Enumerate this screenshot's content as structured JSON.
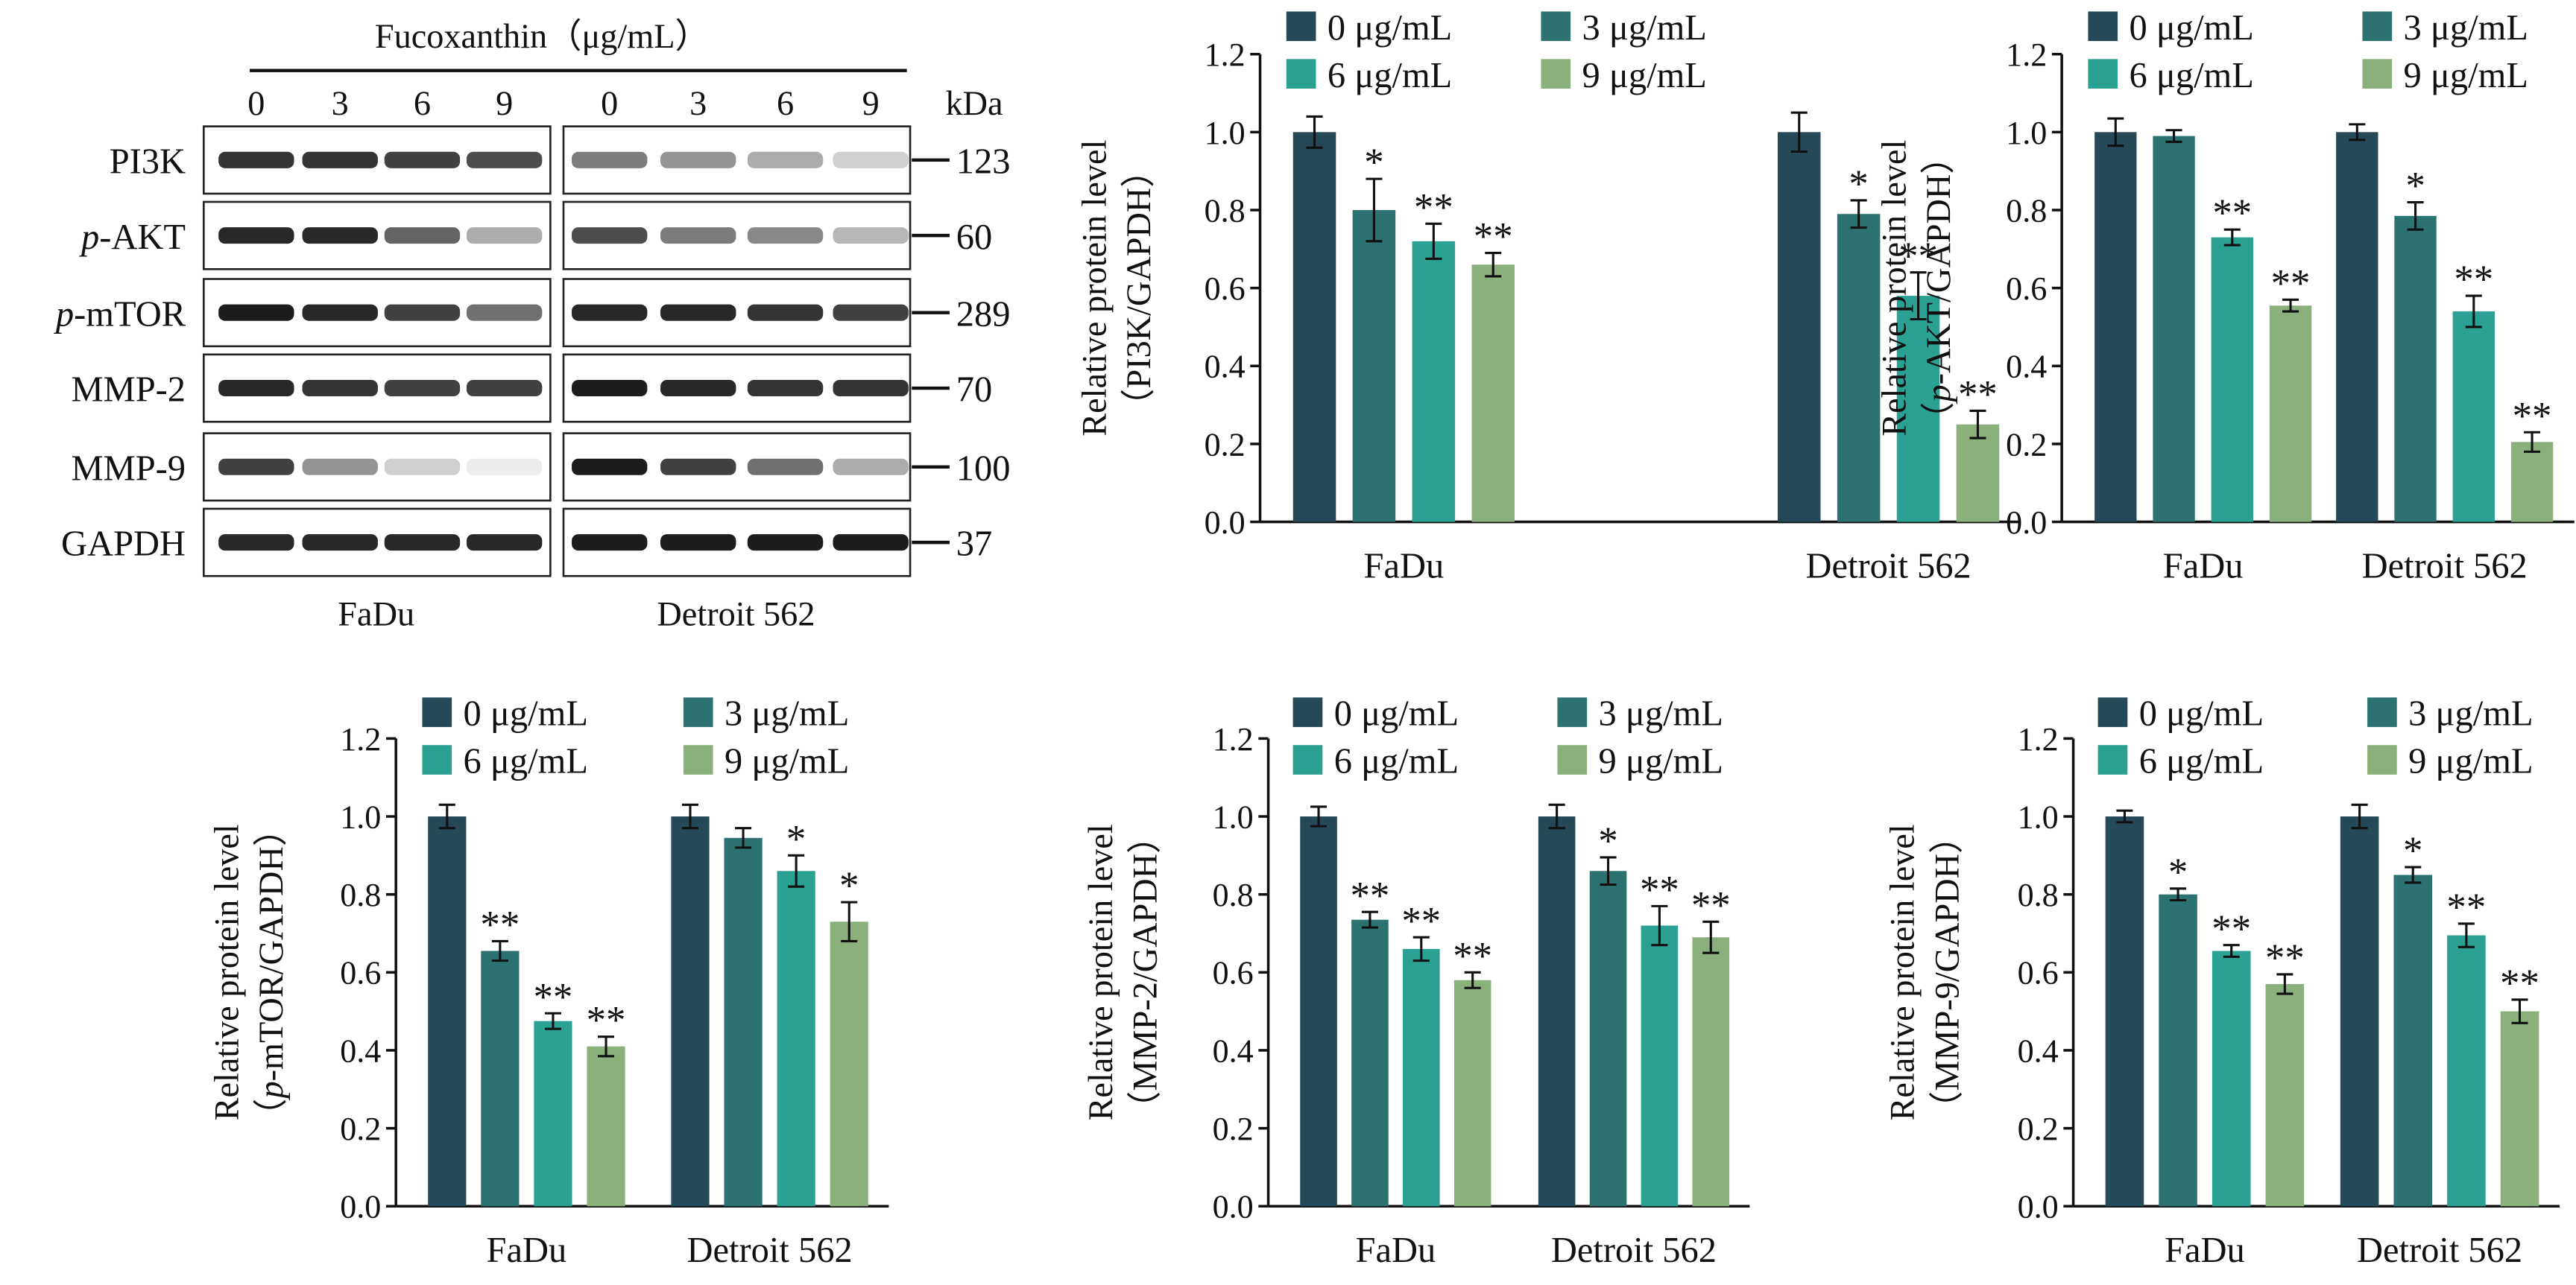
{
  "blot": {
    "treatment_label": "Fucoxanthin（μg/mL）",
    "doses": [
      "0",
      "3",
      "6",
      "9"
    ],
    "unit_label": "kDa",
    "cell_lines": [
      "FaDu",
      "Detroit 562"
    ],
    "rows": [
      {
        "prefix": "",
        "name": "PI3K",
        "kda": "123",
        "intensity": [
          [
            0.85,
            0.85,
            0.8,
            0.75
          ],
          [
            0.55,
            0.45,
            0.35,
            0.2
          ]
        ]
      },
      {
        "prefix": "p",
        "name": "-AKT",
        "kda": "60",
        "intensity": [
          [
            0.9,
            0.9,
            0.65,
            0.35
          ],
          [
            0.75,
            0.55,
            0.5,
            0.3
          ]
        ]
      },
      {
        "prefix": "p",
        "name": "-mTOR",
        "kda": "289",
        "intensity": [
          [
            0.95,
            0.9,
            0.8,
            0.6
          ],
          [
            0.9,
            0.9,
            0.85,
            0.8
          ]
        ]
      },
      {
        "prefix": "",
        "name": "MMP-2",
        "kda": "70",
        "intensity": [
          [
            0.9,
            0.85,
            0.8,
            0.8
          ],
          [
            0.95,
            0.9,
            0.85,
            0.85
          ]
        ]
      },
      {
        "prefix": "",
        "name": "MMP-9",
        "kda": "100",
        "intensity": [
          [
            0.8,
            0.45,
            0.2,
            0.08
          ],
          [
            0.95,
            0.8,
            0.6,
            0.35
          ]
        ]
      },
      {
        "prefix": "",
        "name": "GAPDH",
        "kda": "37",
        "intensity": [
          [
            0.9,
            0.9,
            0.9,
            0.9
          ],
          [
            0.95,
            0.95,
            0.95,
            0.95
          ]
        ]
      }
    ]
  },
  "chart_data": [
    {
      "type": "bar",
      "ylabel_main": "Relative protein level",
      "ylabel_sub": [
        "",
        "PI3K/GAPDH"
      ],
      "categories": [
        "FaDu",
        "Detroit 562"
      ],
      "ylim": [
        0,
        1.2
      ],
      "yticks": [
        "0.0",
        "0.2",
        "0.4",
        "0.6",
        "0.8",
        "1.0",
        "1.2"
      ],
      "legend": [
        "0 μg/mL",
        "3 μg/mL",
        "6 μg/mL",
        "9 μg/mL"
      ],
      "colors": [
        "#26495a",
        "#2b7270",
        "#2aa192",
        "#8ab07c"
      ],
      "values": [
        [
          1.0,
          0.8,
          0.72,
          0.66
        ],
        [
          1.0,
          0.79,
          0.58,
          0.25
        ]
      ],
      "errors": [
        [
          0.04,
          0.08,
          0.045,
          0.03
        ],
        [
          0.05,
          0.035,
          0.06,
          0.035
        ]
      ],
      "sig": [
        [
          "",
          "*",
          "**",
          "**"
        ],
        [
          "",
          "*",
          "**",
          "**"
        ]
      ]
    },
    {
      "type": "bar",
      "ylabel_main": "Relative protein level",
      "ylabel_sub": [
        "p",
        "-AKT/GAPDH"
      ],
      "categories": [
        "FaDu",
        "Detroit 562"
      ],
      "ylim": [
        0,
        1.2
      ],
      "yticks": [
        "0.0",
        "0.2",
        "0.4",
        "0.6",
        "0.8",
        "1.0",
        "1.2"
      ],
      "legend": [
        "0 μg/mL",
        "3 μg/mL",
        "6 μg/mL",
        "9 μg/mL"
      ],
      "colors": [
        "#26495a",
        "#2b7270",
        "#2aa192",
        "#8ab07c"
      ],
      "values": [
        [
          1.0,
          0.99,
          0.73,
          0.555
        ],
        [
          1.0,
          0.785,
          0.54,
          0.205
        ]
      ],
      "errors": [
        [
          0.035,
          0.015,
          0.02,
          0.015
        ],
        [
          0.02,
          0.035,
          0.04,
          0.025
        ]
      ],
      "sig": [
        [
          "",
          "",
          "**",
          "**"
        ],
        [
          "",
          "*",
          "**",
          "**"
        ]
      ]
    },
    {
      "type": "bar",
      "ylabel_main": "Relative protein level",
      "ylabel_sub": [
        "p",
        "-mTOR/GAPDH"
      ],
      "categories": [
        "FaDu",
        "Detroit 562"
      ],
      "ylim": [
        0,
        1.2
      ],
      "yticks": [
        "0.0",
        "0.2",
        "0.4",
        "0.6",
        "0.8",
        "1.0",
        "1.2"
      ],
      "legend": [
        "0 μg/mL",
        "3 μg/mL",
        "6 μg/mL",
        "9 μg/mL"
      ],
      "colors": [
        "#26495a",
        "#2b7270",
        "#2aa192",
        "#8ab07c"
      ],
      "values": [
        [
          1.0,
          0.655,
          0.475,
          0.41
        ],
        [
          1.0,
          0.945,
          0.86,
          0.73
        ]
      ],
      "errors": [
        [
          0.03,
          0.025,
          0.02,
          0.025
        ],
        [
          0.03,
          0.025,
          0.04,
          0.05
        ]
      ],
      "sig": [
        [
          "",
          "**",
          "**",
          "**"
        ],
        [
          "",
          "",
          "*",
          "*"
        ]
      ]
    },
    {
      "type": "bar",
      "ylabel_main": "Relative protein level",
      "ylabel_sub": [
        "",
        "MMP-2/GAPDH"
      ],
      "categories": [
        "FaDu",
        "Detroit 562"
      ],
      "ylim": [
        0,
        1.2
      ],
      "yticks": [
        "0.0",
        "0.2",
        "0.4",
        "0.6",
        "0.8",
        "1.0",
        "1.2"
      ],
      "legend": [
        "0 μg/mL",
        "3 μg/mL",
        "6 μg/mL",
        "9 μg/mL"
      ],
      "colors": [
        "#26495a",
        "#2b7270",
        "#2aa192",
        "#8ab07c"
      ],
      "values": [
        [
          1.0,
          0.735,
          0.66,
          0.58
        ],
        [
          1.0,
          0.86,
          0.72,
          0.69
        ]
      ],
      "errors": [
        [
          0.025,
          0.02,
          0.03,
          0.02
        ],
        [
          0.03,
          0.035,
          0.05,
          0.04
        ]
      ],
      "sig": [
        [
          "",
          "**",
          "**",
          "**"
        ],
        [
          "",
          "*",
          "**",
          "**"
        ]
      ]
    },
    {
      "type": "bar",
      "ylabel_main": "Relative protein level",
      "ylabel_sub": [
        "",
        "MMP-9/GAPDH"
      ],
      "categories": [
        "FaDu",
        "Detroit 562"
      ],
      "ylim": [
        0,
        1.2
      ],
      "yticks": [
        "0.0",
        "0.2",
        "0.4",
        "0.6",
        "0.8",
        "1.0",
        "1.2"
      ],
      "legend": [
        "0 μg/mL",
        "3 μg/mL",
        "6 μg/mL",
        "9 μg/mL"
      ],
      "colors": [
        "#26495a",
        "#2b7270",
        "#2aa192",
        "#8ab07c"
      ],
      "values": [
        [
          1.0,
          0.8,
          0.655,
          0.57
        ],
        [
          1.0,
          0.85,
          0.695,
          0.5
        ]
      ],
      "errors": [
        [
          0.015,
          0.015,
          0.015,
          0.025
        ],
        [
          0.03,
          0.02,
          0.03,
          0.03
        ]
      ],
      "sig": [
        [
          "",
          "*",
          "**",
          "**"
        ],
        [
          "",
          "*",
          "**",
          "**"
        ]
      ]
    }
  ]
}
